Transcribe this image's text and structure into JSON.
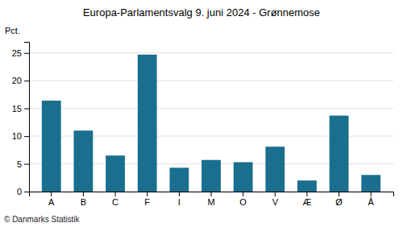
{
  "chart_data": {
    "type": "bar",
    "title": "Europa-Parlamentsvalg 9. juni 2024 - Grønnemose",
    "categories": [
      "A",
      "B",
      "C",
      "F",
      "I",
      "M",
      "O",
      "V",
      "Æ",
      "Ø",
      "Å"
    ],
    "values": [
      16.4,
      11.0,
      6.5,
      24.7,
      4.3,
      5.7,
      5.3,
      8.1,
      2.0,
      13.7,
      3.0
    ],
    "color": "#1a6e8e",
    "ylabel": "Pct.",
    "ylim": [
      0,
      27
    ],
    "yticks": [
      0,
      5,
      10,
      15,
      20,
      25
    ],
    "grid": true,
    "annotations": [
      "© Danmarks Statistik"
    ]
  }
}
